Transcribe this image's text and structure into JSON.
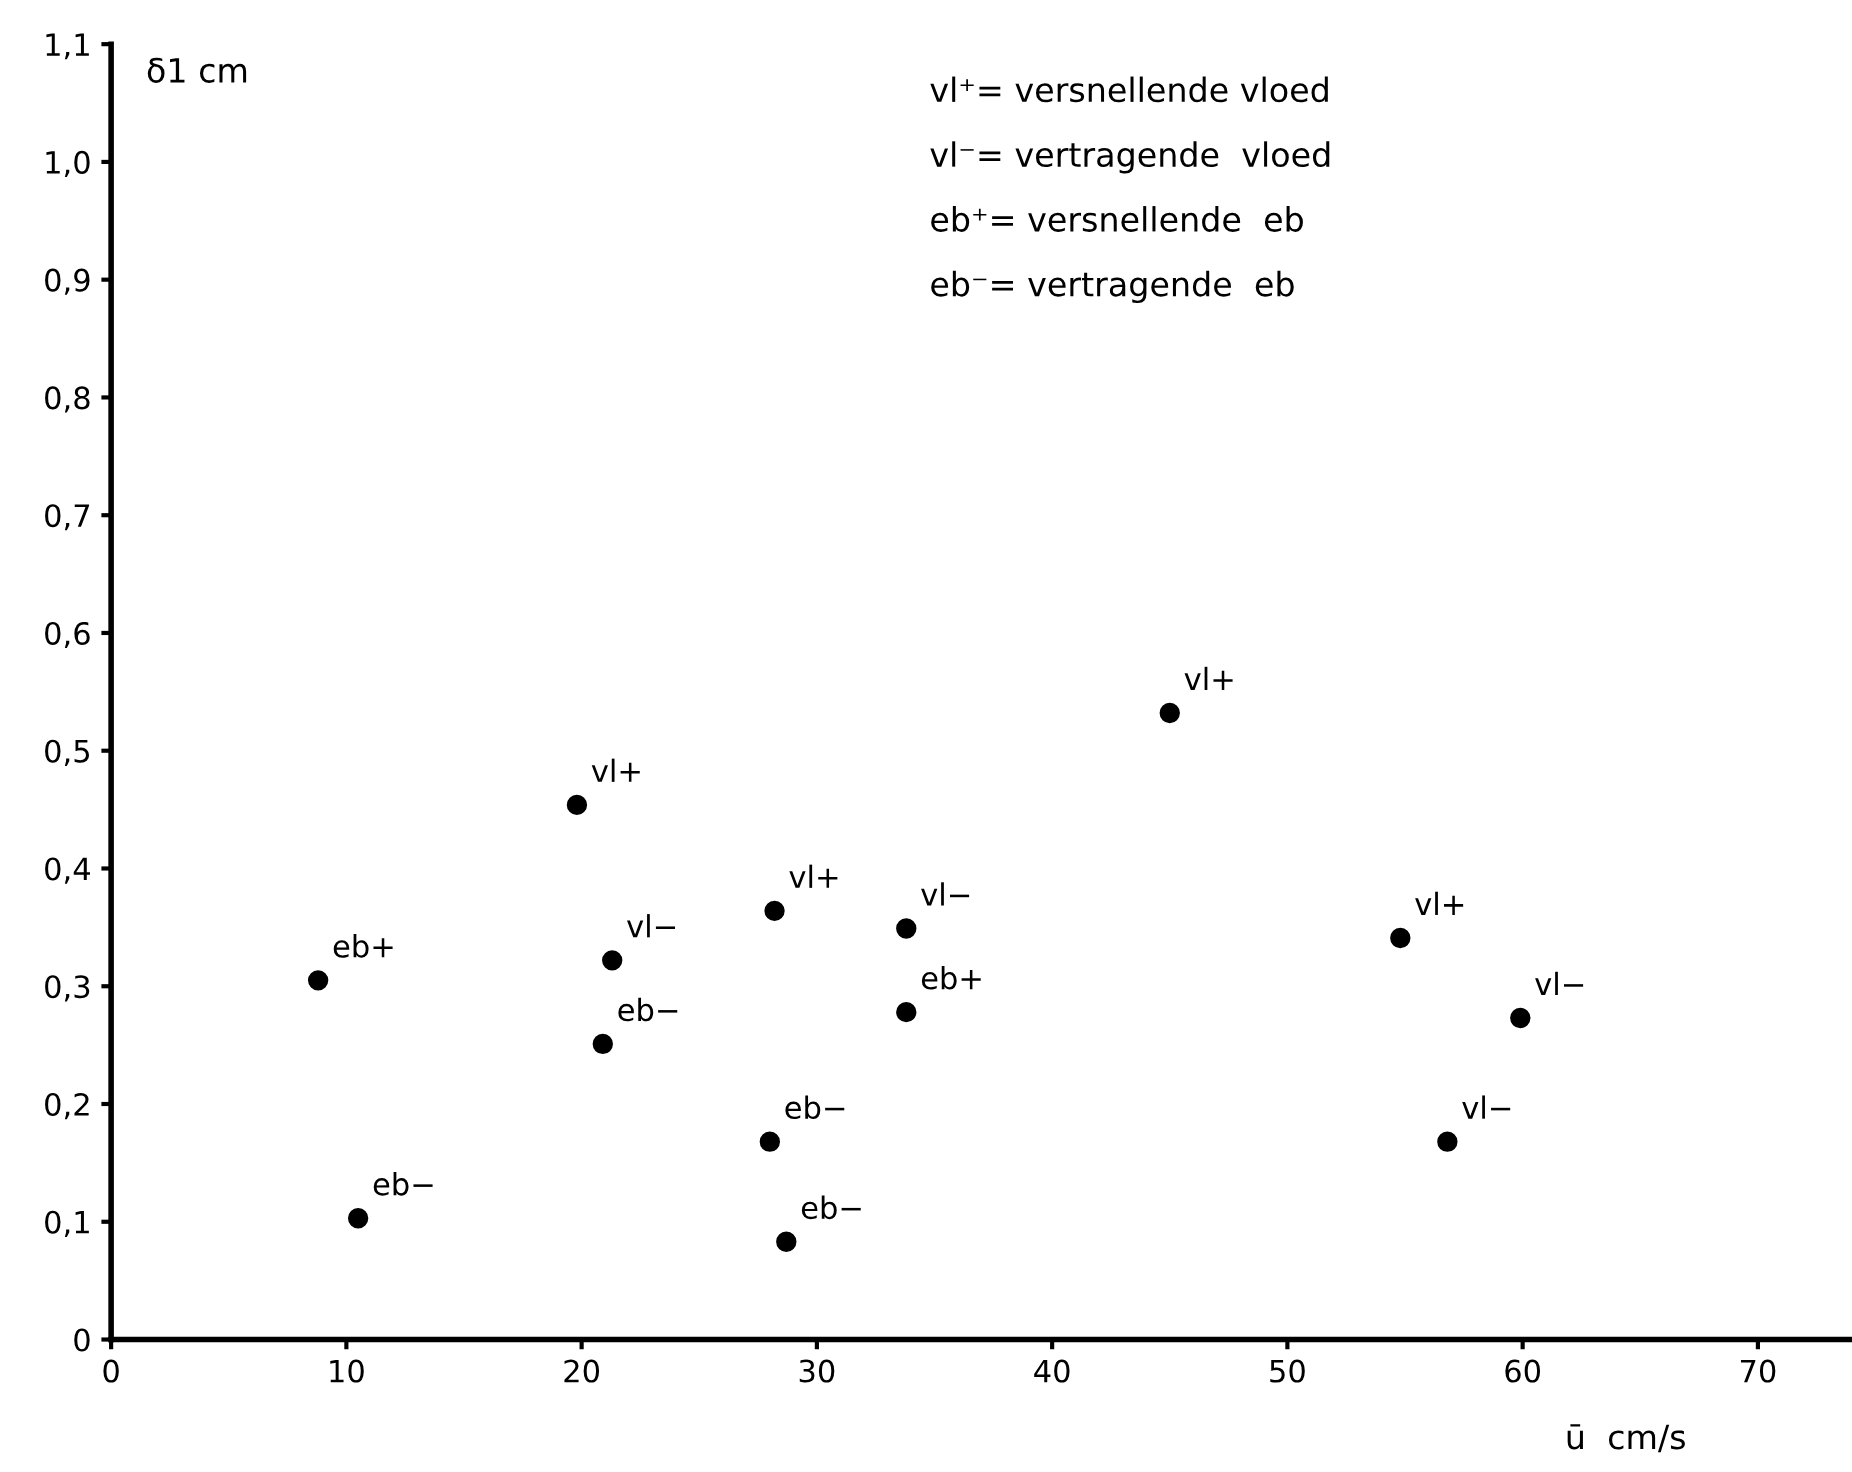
{
  "chart_data": {
    "type": "scatter",
    "xlabel": "ū  cm/s",
    "ylabel": "δ1 cm",
    "x": [
      8.8,
      10.5,
      19.8,
      21.3,
      20.9,
      28.2,
      28.0,
      28.7,
      33.8,
      33.8,
      45.0,
      54.8,
      59.9,
      56.8
    ],
    "series": [
      {
        "color": "#000000",
        "values": [
          0.305,
          0.103,
          0.454,
          0.322,
          0.251,
          0.364,
          0.168,
          0.083,
          0.349,
          0.278,
          0.532,
          0.341,
          0.273,
          0.168
        ]
      }
    ],
    "marker": "circle",
    "xlim": [
      0,
      74
    ],
    "ylim": [
      0,
      1.1
    ],
    "xticks": [
      0,
      10,
      20,
      30,
      40,
      50,
      60,
      70
    ],
    "yticks": [
      0,
      {
        "value": 0.1,
        "label": "0,1"
      },
      {
        "value": 0.2,
        "label": "0,2"
      },
      {
        "value": 0.3,
        "label": "0,3"
      },
      {
        "value": 0.4,
        "label": "0,4"
      },
      {
        "value": 0.5,
        "label": "0,5"
      },
      {
        "value": 0.6,
        "label": "0,6"
      },
      {
        "value": 0.7,
        "label": "0,7"
      },
      {
        "value": 0.8,
        "label": "0,8"
      },
      {
        "value": 0.9,
        "label": "0,9"
      },
      {
        "value": 1.0,
        "label": "1,0"
      },
      {
        "value": 1.1,
        "label": "1,1"
      }
    ],
    "grid": false,
    "annotations": [
      "vl⁺= versnellende vloed",
      "vl⁻= vertragende  vloed",
      "eb⁺= versnellende  eb",
      "eb⁻= vertragende  eb",
      {
        "text": "eb+",
        "x": 8.8,
        "y": 0.305
      },
      {
        "text": "eb−",
        "x": 10.5,
        "y": 0.103
      },
      {
        "text": "vl+",
        "x": 19.8,
        "y": 0.454
      },
      {
        "text": "vl−",
        "x": 21.3,
        "y": 0.322
      },
      {
        "text": "eb−",
        "x": 20.9,
        "y": 0.251
      },
      {
        "text": "vl+",
        "x": 28.2,
        "y": 0.364
      },
      {
        "text": "eb−",
        "x": 28.0,
        "y": 0.168
      },
      {
        "text": "eb−",
        "x": 28.7,
        "y": 0.083
      },
      {
        "text": "vl−",
        "x": 33.8,
        "y": 0.349
      },
      {
        "text": "eb+",
        "x": 33.8,
        "y": 0.278
      },
      {
        "text": "vl+",
        "x": 45.0,
        "y": 0.532
      },
      {
        "text": "vl+",
        "x": 54.8,
        "y": 0.341
      },
      {
        "text": "vl−",
        "x": 59.9,
        "y": 0.273
      },
      {
        "text": "vl−",
        "x": 56.8,
        "y": 0.168
      }
    ]
  }
}
